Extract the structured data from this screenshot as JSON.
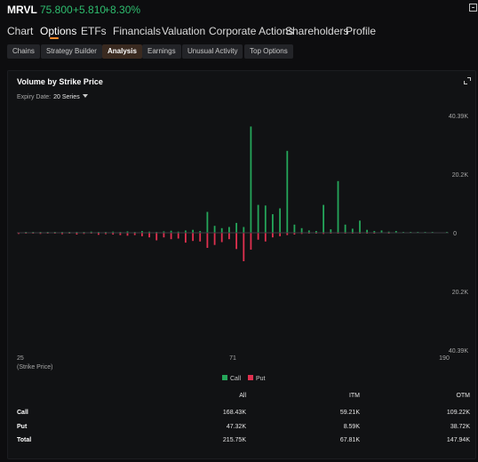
{
  "header": {
    "ticker": "MRVL",
    "price": "75.800",
    "change": "+5.810",
    "change_pct": "+8.30%",
    "accent_up": "#2ebd6f"
  },
  "nav": {
    "tabs": [
      {
        "label": "Chart"
      },
      {
        "label": "Options",
        "active": true
      },
      {
        "label": "ETFs"
      },
      {
        "label": "Financials"
      },
      {
        "label": "Valuation"
      },
      {
        "label": "Corporate Actions"
      },
      {
        "label": "Shareholders"
      },
      {
        "label": "Profile"
      }
    ]
  },
  "subtabs": {
    "items": [
      {
        "label": "Chains"
      },
      {
        "label": "Strategy Builder"
      },
      {
        "label": "Analysis",
        "active": true
      },
      {
        "label": "Earnings"
      },
      {
        "label": "Unusual Activity"
      },
      {
        "label": "Top Options"
      }
    ]
  },
  "panel": {
    "title": "Volume by Strike Price",
    "expiry_label": "Expiry Date:",
    "expiry_value": "20 Series"
  },
  "chart_data": {
    "type": "bar",
    "title": "Volume by Strike Price",
    "xlabel": "(Strike Price)",
    "x_tick_labels": [
      "25",
      "71",
      "190"
    ],
    "y_tick_labels_upper": [
      "40.39K",
      "20.2K",
      "0"
    ],
    "y_tick_labels_lower": [
      "20.2K",
      "40.39K"
    ],
    "ylim": [
      -40390,
      40390
    ],
    "legend": [
      {
        "name": "Call",
        "color": "#25a65a"
      },
      {
        "name": "Put",
        "color": "#e0304f"
      }
    ],
    "legend_position": "bottom-center",
    "grid": false,
    "bars": [
      {
        "call": 0,
        "put": 400
      },
      {
        "call": 100,
        "put": 300
      },
      {
        "call": 200,
        "put": 200
      },
      {
        "call": 100,
        "put": 400
      },
      {
        "call": 200,
        "put": 300
      },
      {
        "call": 100,
        "put": 200
      },
      {
        "call": 300,
        "put": 500
      },
      {
        "call": 200,
        "put": 300
      },
      {
        "call": 300,
        "put": 600
      },
      {
        "call": 200,
        "put": 400
      },
      {
        "call": 400,
        "put": 300
      },
      {
        "call": 300,
        "put": 700
      },
      {
        "call": 200,
        "put": 500
      },
      {
        "call": 400,
        "put": 600
      },
      {
        "call": 300,
        "put": 800
      },
      {
        "call": 500,
        "put": 1000
      },
      {
        "call": 300,
        "put": 800
      },
      {
        "call": 600,
        "put": 1200
      },
      {
        "call": 400,
        "put": 1600
      },
      {
        "call": 300,
        "put": 2600
      },
      {
        "call": 500,
        "put": 1600
      },
      {
        "call": 700,
        "put": 2200
      },
      {
        "call": 400,
        "put": 2000
      },
      {
        "call": 800,
        "put": 3400
      },
      {
        "call": 1000,
        "put": 2800
      },
      {
        "call": 600,
        "put": 3000
      },
      {
        "call": 7200,
        "put": 5200
      },
      {
        "call": 2400,
        "put": 4200
      },
      {
        "call": 1600,
        "put": 3200
      },
      {
        "call": 2000,
        "put": 2200
      },
      {
        "call": 3400,
        "put": 5600
      },
      {
        "call": 2000,
        "put": 9800
      },
      {
        "call": 36600,
        "put": 5800
      },
      {
        "call": 9600,
        "put": 2400
      },
      {
        "call": 9400,
        "put": 3000
      },
      {
        "call": 6400,
        "put": 1600
      },
      {
        "call": 8400,
        "put": 1200
      },
      {
        "call": 28200,
        "put": 800
      },
      {
        "call": 2800,
        "put": 600
      },
      {
        "call": 1600,
        "put": 400
      },
      {
        "call": 800,
        "put": 300
      },
      {
        "call": 600,
        "put": 200
      },
      {
        "call": 9600,
        "put": 400
      },
      {
        "call": 1200,
        "put": 200
      },
      {
        "call": 17800,
        "put": 300
      },
      {
        "call": 2800,
        "put": 200
      },
      {
        "call": 1400,
        "put": 100
      },
      {
        "call": 4200,
        "put": 200
      },
      {
        "call": 1000,
        "put": 100
      },
      {
        "call": 600,
        "put": 100
      },
      {
        "call": 800,
        "put": 0
      },
      {
        "call": 400,
        "put": 100
      },
      {
        "call": 600,
        "put": 0
      },
      {
        "call": 200,
        "put": 0
      },
      {
        "call": 300,
        "put": 0
      },
      {
        "call": 100,
        "put": 0
      },
      {
        "call": 200,
        "put": 0
      },
      {
        "call": 100,
        "put": 0
      },
      {
        "call": 0,
        "put": 0
      },
      {
        "call": 100,
        "put": 0
      }
    ]
  },
  "summary": {
    "headers": [
      "All",
      "ITM",
      "OTM"
    ],
    "rows": [
      {
        "label": "Call",
        "all": "168.43K",
        "itm": "59.21K",
        "otm": "109.22K"
      },
      {
        "label": "Put",
        "all": "47.32K",
        "itm": "8.59K",
        "otm": "38.72K"
      },
      {
        "label": "Total",
        "all": "215.75K",
        "itm": "67.81K",
        "otm": "147.94K"
      }
    ]
  }
}
